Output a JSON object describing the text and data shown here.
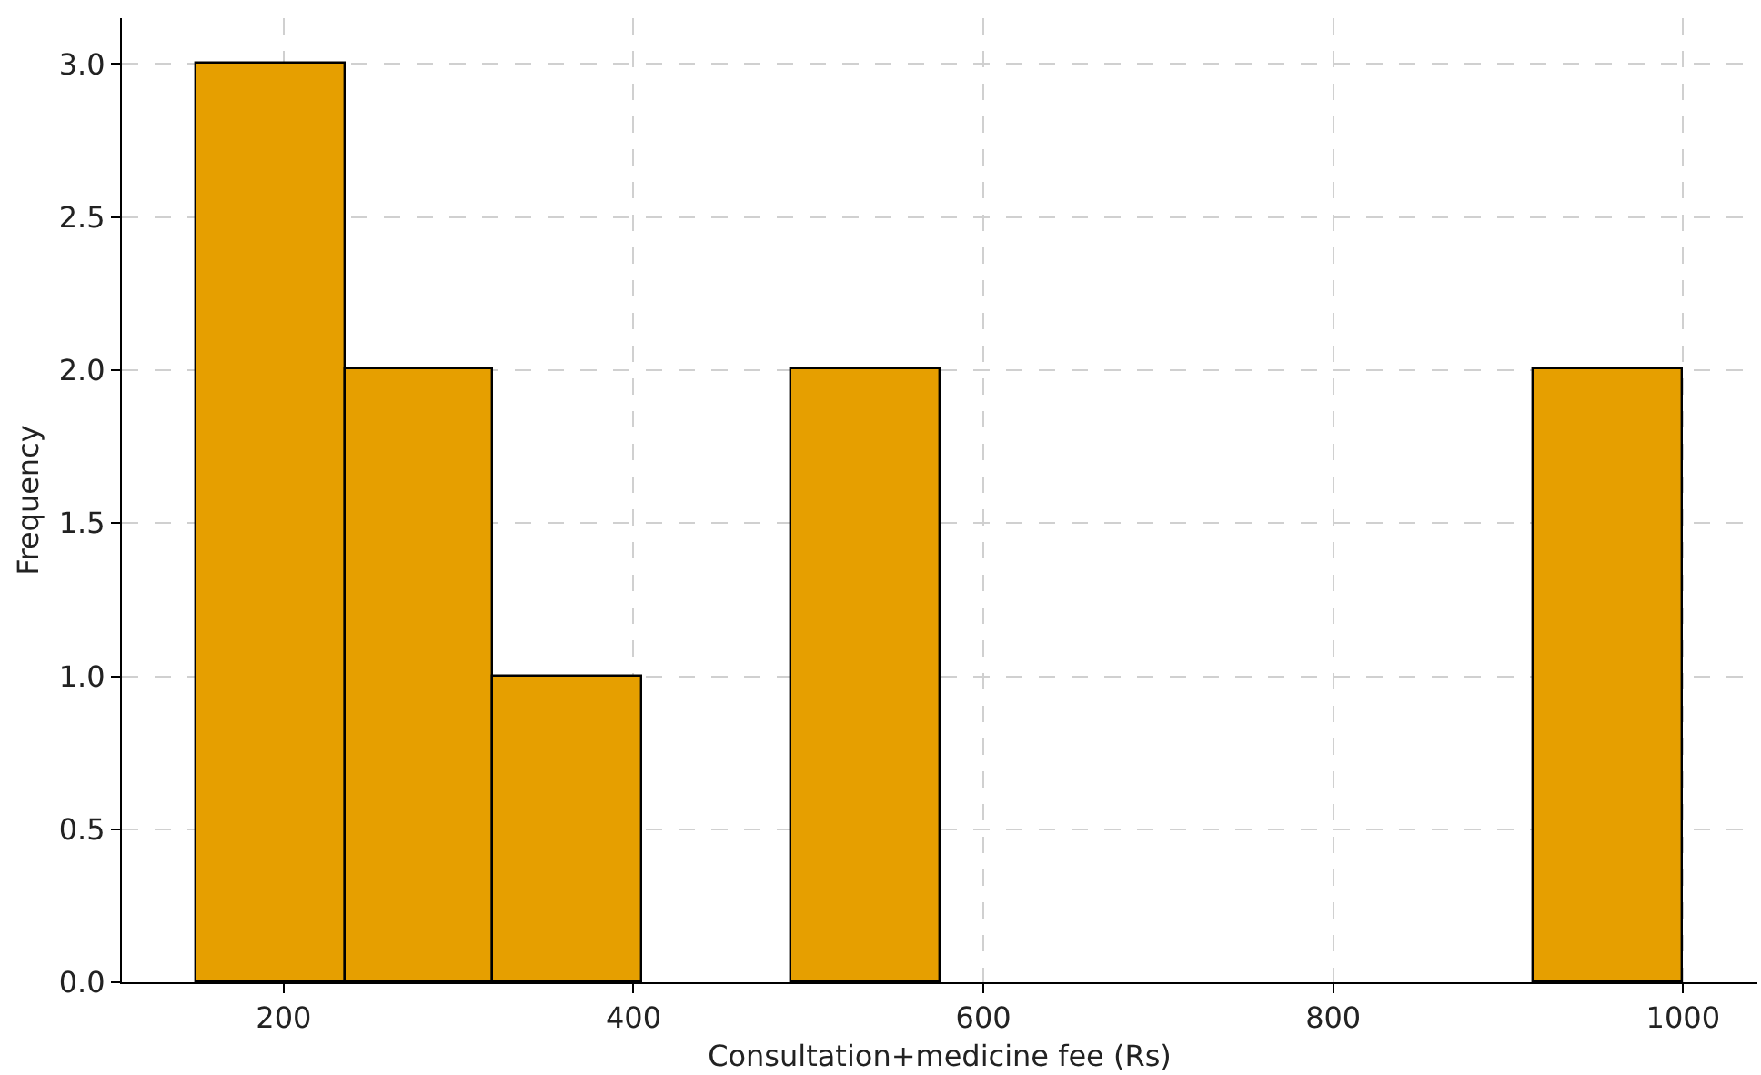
{
  "chart_data": {
    "type": "histogram",
    "xlabel": "Consultation+medicine fee (Rs)",
    "ylabel": "Frequency",
    "bins": [
      150,
      235,
      320,
      405,
      490,
      575,
      660,
      745,
      830,
      915,
      1000
    ],
    "values": [
      3,
      2,
      1,
      0,
      2,
      0,
      0,
      0,
      0,
      2
    ],
    "color": "#e69f00",
    "xlim": [
      107.5,
      1042.5
    ],
    "xticks": [
      200,
      400,
      600,
      800,
      1000
    ],
    "ylim": [
      0,
      3.15
    ],
    "yticks": [
      {
        "value": 0,
        "label": "0.0"
      },
      {
        "value": 0.5,
        "label": "0.5"
      },
      {
        "value": 1,
        "label": "1.0"
      },
      {
        "value": 1.5,
        "label": "1.5"
      },
      {
        "value": 2,
        "label": "2.0"
      },
      {
        "value": 2.5,
        "label": "2.5"
      },
      {
        "value": 3,
        "label": "3.0"
      }
    ],
    "grid": true,
    "legend": false
  }
}
